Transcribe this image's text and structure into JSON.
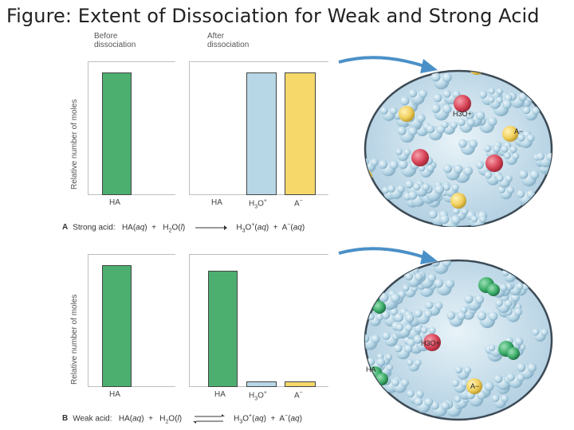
{
  "title": "Figure: Extent of Dissociation for Weak and Strong Acid",
  "panel_a": {
    "before_label": "Before\ndissociation",
    "after_label": "After\ndissociation",
    "y_label": "Relative number of moles",
    "cat_ha_before": "HA",
    "cat_ha_after": "HA",
    "cat_h3o": "H3O+",
    "cat_a": "A−",
    "eq_letter": "A",
    "eq_text": "Strong acid:",
    "mol_labels": {
      "h3o": "H3O+",
      "a": "A−"
    }
  },
  "panel_b": {
    "y_label": "Relative number of moles",
    "cat_ha_before": "HA",
    "cat_ha_after": "HA",
    "cat_h3o": "H3O+",
    "cat_a": "A−",
    "eq_letter": "B",
    "eq_text": "Weak acid:",
    "mol_labels": {
      "h3o": "H3O+",
      "a": "A−",
      "ha": "HA"
    }
  },
  "chart_data": [
    {
      "type": "bar",
      "panel": "A",
      "before": {
        "categories": [
          "HA"
        ],
        "values": [
          1.0
        ]
      },
      "after": {
        "categories": [
          "HA",
          "H3O+",
          "A−"
        ],
        "values": [
          0,
          1.0,
          1.0
        ]
      },
      "colors": {
        "HA": "#4caf70",
        "H3O+": "#b7d6e6",
        "A−": "#f5d76a"
      }
    },
    {
      "type": "bar",
      "panel": "B",
      "before": {
        "categories": [
          "HA"
        ],
        "values": [
          1.0
        ]
      },
      "after": {
        "categories": [
          "HA",
          "H3O+",
          "A−"
        ],
        "values": [
          0.95,
          0.05,
          0.05
        ]
      },
      "colors": {
        "HA": "#4caf70",
        "H3O+": "#b7d6e6",
        "A−": "#f5d76a"
      }
    }
  ],
  "colors": {
    "water": "#b7d6e6",
    "ha": "#3dae6a",
    "h3o": "#d9475a",
    "a": "#f1d05c",
    "arrow": "#4a90c8"
  }
}
